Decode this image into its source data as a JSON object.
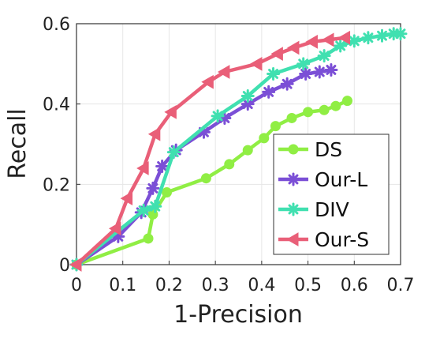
{
  "chart_data": {
    "type": "line",
    "title": "",
    "xlabel": "1-Precision",
    "ylabel": "Recall",
    "xlim": [
      0,
      0.7
    ],
    "ylim": [
      0,
      0.6
    ],
    "grid": true,
    "legend_position": "bottom-right",
    "x_ticks": [
      {
        "value": 0,
        "label": "0"
      },
      {
        "value": 0.1,
        "label": "0.1"
      },
      {
        "value": 0.2,
        "label": "0.2"
      },
      {
        "value": 0.3,
        "label": "0.3"
      },
      {
        "value": 0.4,
        "label": "0.4"
      },
      {
        "value": 0.5,
        "label": "0.5"
      },
      {
        "value": 0.6,
        "label": "0.6"
      },
      {
        "value": 0.7,
        "label": "0.7"
      }
    ],
    "y_ticks": [
      {
        "value": 0,
        "label": "0"
      },
      {
        "value": 0.2,
        "label": "0.2"
      },
      {
        "value": 0.4,
        "label": "0.4"
      },
      {
        "value": 0.6,
        "label": "0.6"
      }
    ],
    "series": [
      {
        "name": "DS",
        "color": "#90ee44",
        "marker": "circle",
        "points": [
          [
            0,
            0
          ],
          [
            0.155,
            0.065
          ],
          [
            0.165,
            0.125
          ],
          [
            0.195,
            0.18
          ],
          [
            0.28,
            0.215
          ],
          [
            0.33,
            0.25
          ],
          [
            0.37,
            0.285
          ],
          [
            0.405,
            0.315
          ],
          [
            0.43,
            0.345
          ],
          [
            0.465,
            0.365
          ],
          [
            0.5,
            0.38
          ],
          [
            0.535,
            0.385
          ],
          [
            0.56,
            0.395
          ],
          [
            0.585,
            0.408
          ]
        ]
      },
      {
        "name": "Our-L",
        "color": "#7b4fd6",
        "marker": "asterisk",
        "points": [
          [
            0,
            0
          ],
          [
            0.09,
            0.07
          ],
          [
            0.14,
            0.13
          ],
          [
            0.165,
            0.19
          ],
          [
            0.185,
            0.245
          ],
          [
            0.215,
            0.285
          ],
          [
            0.275,
            0.33
          ],
          [
            0.32,
            0.365
          ],
          [
            0.37,
            0.4
          ],
          [
            0.415,
            0.43
          ],
          [
            0.455,
            0.45
          ],
          [
            0.495,
            0.475
          ],
          [
            0.525,
            0.48
          ],
          [
            0.55,
            0.485
          ]
        ]
      },
      {
        "name": "DIV",
        "color": "#40e0b0",
        "marker": "asterisk",
        "points": [
          [
            0,
            0
          ],
          [
            0.145,
            0.135
          ],
          [
            0.17,
            0.145
          ],
          [
            0.21,
            0.28
          ],
          [
            0.305,
            0.37
          ],
          [
            0.37,
            0.42
          ],
          [
            0.425,
            0.475
          ],
          [
            0.49,
            0.5
          ],
          [
            0.535,
            0.52
          ],
          [
            0.57,
            0.545
          ],
          [
            0.6,
            0.557
          ],
          [
            0.63,
            0.565
          ],
          [
            0.66,
            0.57
          ],
          [
            0.685,
            0.575
          ],
          [
            0.7,
            0.575
          ]
        ]
      },
      {
        "name": "Our-S",
        "color": "#e95f78",
        "marker": "triangle-left",
        "points": [
          [
            0,
            0
          ],
          [
            0.085,
            0.09
          ],
          [
            0.11,
            0.165
          ],
          [
            0.145,
            0.24
          ],
          [
            0.17,
            0.325
          ],
          [
            0.205,
            0.38
          ],
          [
            0.285,
            0.455
          ],
          [
            0.32,
            0.48
          ],
          [
            0.39,
            0.5
          ],
          [
            0.435,
            0.525
          ],
          [
            0.47,
            0.54
          ],
          [
            0.51,
            0.555
          ],
          [
            0.545,
            0.56
          ],
          [
            0.58,
            0.565
          ]
        ]
      }
    ]
  }
}
